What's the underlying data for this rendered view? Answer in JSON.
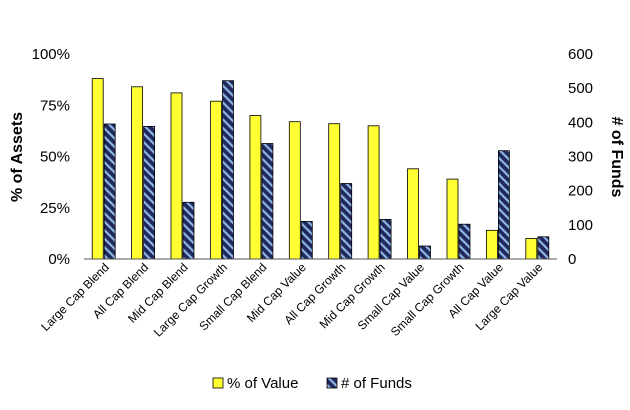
{
  "chart_data": {
    "type": "bar",
    "categories": [
      "Large Cap Blend",
      "All Cap Blend",
      "Mid Cap Blend",
      "Large Cap Growth",
      "Small Cap Blend",
      "Mid Cap Value",
      "All Cap Growth",
      "Mid Cap Growth",
      "Small Cap Value",
      "Small Cap Growth",
      "All Cap Value",
      "Large Cap Value"
    ],
    "series": [
      {
        "name": "% of Value",
        "axis": "left",
        "color": "#ffff33",
        "pattern": "solid",
        "values": [
          88,
          84,
          81,
          77,
          70,
          67,
          66,
          65,
          44,
          39,
          14,
          10
        ]
      },
      {
        "name": "# of Funds",
        "axis": "right",
        "color": "#1f2a5a",
        "pattern": "diagonal-stripes",
        "values": [
          395,
          388,
          166,
          522,
          338,
          110,
          221,
          116,
          38,
          102,
          317,
          65
        ]
      }
    ],
    "ylabel": "% of Assets",
    "y2label": "# of Funds",
    "ylim": [
      0,
      100
    ],
    "y2lim": [
      0,
      600
    ],
    "yticks": [
      "0%",
      "25%",
      "50%",
      "75%",
      "100%"
    ],
    "y2ticks": [
      "0",
      "100",
      "200",
      "300",
      "400",
      "500",
      "600"
    ],
    "grid": false,
    "legend": "bottom"
  }
}
